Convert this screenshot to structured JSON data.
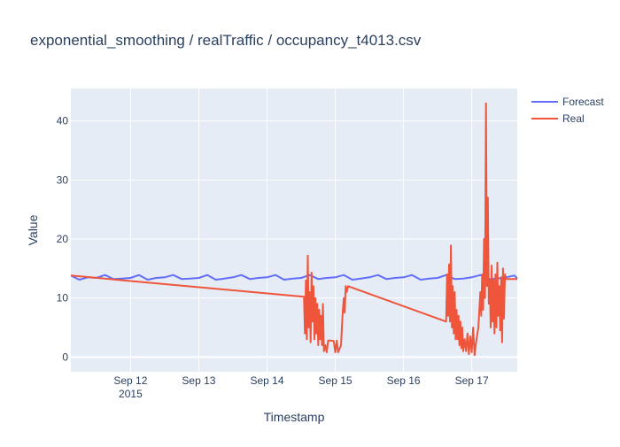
{
  "chart_data": {
    "type": "line",
    "title": "exponential_smoothing / realTraffic / occupancy_t4013.csv",
    "xlabel": "Timestamp",
    "ylabel": "Value",
    "x_start": "2015-09-11 03:00",
    "x_range": [
      "2015-09-11 03:00",
      "2015-09-17 16:00"
    ],
    "ylim": [
      -2.5,
      45.5
    ],
    "y_ticks": [
      0,
      10,
      20,
      30,
      40
    ],
    "x_ticks": [
      {
        "at": "2015-09-12",
        "label": "Sep 12",
        "sublabel": "2015"
      },
      {
        "at": "2015-09-13",
        "label": "Sep 13",
        "sublabel": ""
      },
      {
        "at": "2015-09-14",
        "label": "Sep 14",
        "sublabel": ""
      },
      {
        "at": "2015-09-15",
        "label": "Sep 15",
        "sublabel": ""
      },
      {
        "at": "2015-09-16",
        "label": "Sep 16",
        "sublabel": ""
      },
      {
        "at": "2015-09-17",
        "label": "Sep 17",
        "sublabel": ""
      }
    ],
    "grid": true,
    "legend_position": "top-right",
    "series": [
      {
        "name": "Forecast",
        "color": "#636efa",
        "points": [
          [
            "2015-09-11 03:00",
            13.8
          ],
          [
            "2015-09-11 06:00",
            13.1
          ],
          [
            "2015-09-11 09:00",
            13.5
          ],
          [
            "2015-09-11 12:00",
            13.4
          ],
          [
            "2015-09-11 15:00",
            13.9
          ],
          [
            "2015-09-11 18:00",
            13.2
          ],
          [
            "2015-09-11 21:00",
            13.3
          ],
          [
            "2015-09-12 00:00",
            13.4
          ],
          [
            "2015-09-12 03:00",
            13.9
          ],
          [
            "2015-09-12 06:00",
            13.1
          ],
          [
            "2015-09-12 09:00",
            13.4
          ],
          [
            "2015-09-12 12:00",
            13.5
          ],
          [
            "2015-09-12 15:00",
            13.9
          ],
          [
            "2015-09-12 18:00",
            13.2
          ],
          [
            "2015-09-12 21:00",
            13.3
          ],
          [
            "2015-09-13 00:00",
            13.4
          ],
          [
            "2015-09-13 03:00",
            13.9
          ],
          [
            "2015-09-13 06:00",
            13.1
          ],
          [
            "2015-09-13 09:00",
            13.3
          ],
          [
            "2015-09-13 12:00",
            13.5
          ],
          [
            "2015-09-13 15:00",
            13.9
          ],
          [
            "2015-09-13 18:00",
            13.2
          ],
          [
            "2015-09-13 21:00",
            13.4
          ],
          [
            "2015-09-14 00:00",
            13.5
          ],
          [
            "2015-09-14 03:00",
            13.9
          ],
          [
            "2015-09-14 06:00",
            13.1
          ],
          [
            "2015-09-14 09:00",
            13.3
          ],
          [
            "2015-09-14 12:00",
            13.4
          ],
          [
            "2015-09-14 15:00",
            13.9
          ],
          [
            "2015-09-14 18:00",
            13.2
          ],
          [
            "2015-09-14 21:00",
            13.4
          ],
          [
            "2015-09-15 00:00",
            13.5
          ],
          [
            "2015-09-15 03:00",
            13.9
          ],
          [
            "2015-09-15 06:00",
            13.1
          ],
          [
            "2015-09-15 09:00",
            13.3
          ],
          [
            "2015-09-15 12:00",
            13.5
          ],
          [
            "2015-09-15 15:00",
            13.9
          ],
          [
            "2015-09-15 18:00",
            13.2
          ],
          [
            "2015-09-15 21:00",
            13.4
          ],
          [
            "2015-09-16 00:00",
            13.5
          ],
          [
            "2015-09-16 03:00",
            13.9
          ],
          [
            "2015-09-16 06:00",
            13.1
          ],
          [
            "2015-09-16 09:00",
            13.3
          ],
          [
            "2015-09-16 12:00",
            13.4
          ],
          [
            "2015-09-16 15:00",
            13.9
          ],
          [
            "2015-09-16 18:00",
            13.2
          ],
          [
            "2015-09-16 21:00",
            13.3
          ],
          [
            "2015-09-17 00:00",
            13.5
          ],
          [
            "2015-09-17 03:00",
            13.9
          ],
          [
            "2015-09-17 06:00",
            13.2
          ],
          [
            "2015-09-17 09:00",
            13.3
          ],
          [
            "2015-09-17 12:00",
            13.5
          ],
          [
            "2015-09-17 15:00",
            13.8
          ],
          [
            "2015-09-17 16:00",
            13.3
          ]
        ]
      },
      {
        "name": "Real",
        "color": "#ef553b",
        "points": [
          [
            "2015-09-11 03:00",
            13.8
          ],
          [
            "2015-09-14 13:00",
            10.2
          ],
          [
            "2015-09-14 13:20",
            4.0
          ],
          [
            "2015-09-14 13:40",
            13.0
          ],
          [
            "2015-09-14 14:00",
            3.0
          ],
          [
            "2015-09-14 14:20",
            17.2
          ],
          [
            "2015-09-14 14:40",
            5.0
          ],
          [
            "2015-09-14 15:00",
            11.0
          ],
          [
            "2015-09-14 15:20",
            2.5
          ],
          [
            "2015-09-14 15:40",
            14.3
          ],
          [
            "2015-09-14 16:00",
            6.0
          ],
          [
            "2015-09-14 16:20",
            12.0
          ],
          [
            "2015-09-14 16:40",
            3.0
          ],
          [
            "2015-09-14 17:00",
            10.0
          ],
          [
            "2015-09-14 17:20",
            4.0
          ],
          [
            "2015-09-14 17:40",
            9.0
          ],
          [
            "2015-09-14 18:00",
            2.0
          ],
          [
            "2015-09-14 18:20",
            8.0
          ],
          [
            "2015-09-14 18:40",
            3.0
          ],
          [
            "2015-09-14 19:00",
            7.0
          ],
          [
            "2015-09-14 19:20",
            2.0
          ],
          [
            "2015-09-14 19:40",
            9.0
          ],
          [
            "2015-09-14 20:00",
            1.0
          ],
          [
            "2015-09-14 20:30",
            2.0
          ],
          [
            "2015-09-14 21:00",
            0.8
          ],
          [
            "2015-09-14 21:30",
            2.8
          ],
          [
            "2015-09-14 22:30",
            2.8
          ],
          [
            "2015-09-14 23:30",
            2.7
          ],
          [
            "2015-09-15 00:00",
            0.8
          ],
          [
            "2015-09-15 00:30",
            2.8
          ],
          [
            "2015-09-15 01:00",
            0.8
          ],
          [
            "2015-09-15 02:00",
            2.0
          ],
          [
            "2015-09-15 02:40",
            8.0
          ],
          [
            "2015-09-15 03:00",
            10.0
          ],
          [
            "2015-09-15 03:20",
            7.5
          ],
          [
            "2015-09-15 03:40",
            12.0
          ],
          [
            "2015-09-15 04:00",
            11.0
          ],
          [
            "2015-09-15 04:30",
            12.0
          ],
          [
            "2015-09-16 15:00",
            6.0
          ],
          [
            "2015-09-16 15:20",
            14.0
          ],
          [
            "2015-09-16 15:40",
            7.0
          ],
          [
            "2015-09-16 16:00",
            15.7
          ],
          [
            "2015-09-16 16:20",
            6.0
          ],
          [
            "2015-09-16 16:40",
            18.9
          ],
          [
            "2015-09-16 17:00",
            5.0
          ],
          [
            "2015-09-16 17:20",
            12.0
          ],
          [
            "2015-09-16 17:40",
            4.0
          ],
          [
            "2015-09-16 18:00",
            11.0
          ],
          [
            "2015-09-16 18:20",
            3.0
          ],
          [
            "2015-09-16 18:40",
            8.0
          ],
          [
            "2015-09-16 19:00",
            3.0
          ],
          [
            "2015-09-16 19:20",
            7.0
          ],
          [
            "2015-09-16 19:40",
            2.0
          ],
          [
            "2015-09-16 20:00",
            6.0
          ],
          [
            "2015-09-16 20:20",
            1.5
          ],
          [
            "2015-09-16 20:40",
            5.0
          ],
          [
            "2015-09-16 21:00",
            1.0
          ],
          [
            "2015-09-16 21:30",
            3.0
          ],
          [
            "2015-09-16 22:00",
            1.0
          ],
          [
            "2015-09-16 22:30",
            4.0
          ],
          [
            "2015-09-16 23:00",
            0.5
          ],
          [
            "2015-09-16 23:30",
            3.5
          ],
          [
            "2015-09-17 00:00",
            0.8
          ],
          [
            "2015-09-17 00:30",
            5.0
          ],
          [
            "2015-09-17 01:00",
            0.3
          ],
          [
            "2015-09-17 01:40",
            3.0
          ],
          [
            "2015-09-17 02:20",
            5.0
          ],
          [
            "2015-09-17 02:40",
            8.0
          ],
          [
            "2015-09-17 03:00",
            11.0
          ],
          [
            "2015-09-17 03:20",
            7.0
          ],
          [
            "2015-09-17 03:40",
            14.0
          ],
          [
            "2015-09-17 04:00",
            8.0
          ],
          [
            "2015-09-17 04:20",
            20.0
          ],
          [
            "2015-09-17 04:40",
            10.0
          ],
          [
            "2015-09-17 05:00",
            43.0
          ],
          [
            "2015-09-17 05:20",
            12.0
          ],
          [
            "2015-09-17 05:40",
            27.0
          ],
          [
            "2015-09-17 06:00",
            9.0
          ],
          [
            "2015-09-17 06:20",
            13.0
          ],
          [
            "2015-09-17 06:40",
            5.0
          ],
          [
            "2015-09-17 07:00",
            15.5
          ],
          [
            "2015-09-17 07:20",
            6.0
          ],
          [
            "2015-09-17 07:40",
            13.0
          ],
          [
            "2015-09-17 08:00",
            4.0
          ],
          [
            "2015-09-17 08:20",
            14.0
          ],
          [
            "2015-09-17 08:40",
            5.0
          ],
          [
            "2015-09-17 09:00",
            16.0
          ],
          [
            "2015-09-17 09:20",
            7.0
          ],
          [
            "2015-09-17 09:40",
            12.0
          ],
          [
            "2015-09-17 10:00",
            4.5
          ],
          [
            "2015-09-17 10:20",
            13.5
          ],
          [
            "2015-09-17 10:40",
            2.5
          ],
          [
            "2015-09-17 11:00",
            15.0
          ],
          [
            "2015-09-17 11:20",
            6.5
          ],
          [
            "2015-09-17 11:40",
            14.0
          ],
          [
            "2015-09-17 12:00",
            13.2
          ],
          [
            "2015-09-17 16:00",
            13.2
          ]
        ]
      }
    ]
  }
}
